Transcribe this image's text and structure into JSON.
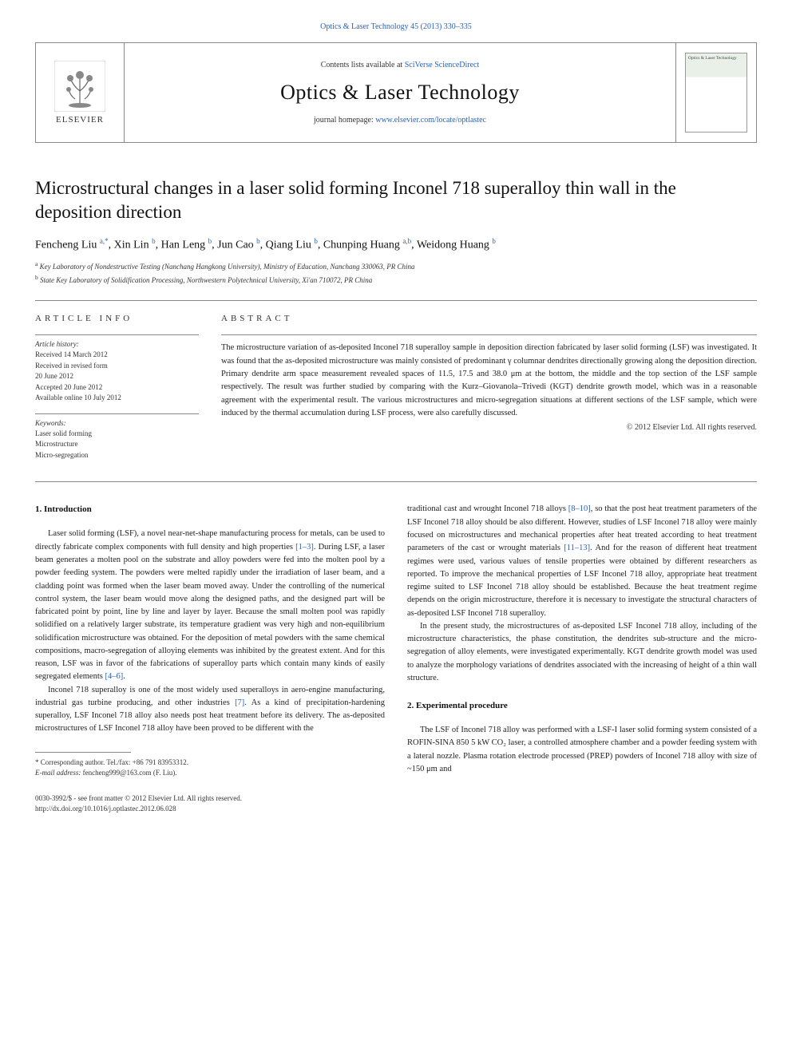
{
  "header": {
    "top_link_text": "Optics & Laser Technology 45 (2013) 330–335",
    "top_link_color": "#2962b8",
    "contents_prefix": "Contents lists available at ",
    "contents_linktext": "SciVerse ScienceDirect",
    "journal_name": "Optics & Laser Technology",
    "homepage_prefix": "journal homepage: ",
    "homepage_link": "www.elsevier.com/locate/optlastec",
    "publisher_name": "ELSEVIER",
    "cover_label": "Optics & Laser Technology"
  },
  "article": {
    "title": "Microstructural changes in a laser solid forming Inconel 718 superalloy thin wall in the deposition direction",
    "authors_html": "Fencheng Liu <sup>a,*</sup>, Xin Lin <sup>b</sup>, Han Leng <sup>b</sup>, Jun Cao <sup>b</sup>, Qiang Liu <sup>b</sup>, Chunping Huang <sup>a,b</sup>, Weidong Huang <sup>b</sup>",
    "affiliations": [
      {
        "sup": "a",
        "text": "Key Laboratory of Nondestructive Testing (Nanchang Hangkong University), Ministry of Education, Nanchang 330063, PR China"
      },
      {
        "sup": "b",
        "text": "State Key Laboratory of Solidification Processing, Northwestern Polytechnical University, Xi'an 710072, PR China"
      }
    ]
  },
  "info": {
    "heading": "ARTICLE INFO",
    "history_label": "Article history:",
    "history_lines": [
      "Received 14 March 2012",
      "Received in revised form",
      "20 June 2012",
      "Accepted 20 June 2012",
      "Available online 10 July 2012"
    ],
    "keywords_label": "Keywords:",
    "keywords": [
      "Laser solid forming",
      "Microstructure",
      "Micro-segregation"
    ]
  },
  "abstract": {
    "heading": "ABSTRACT",
    "text": "The microstructure variation of as-deposited Inconel 718 superalloy sample in deposition direction fabricated by laser solid forming (LSF) was investigated. It was found that the as-deposited microstructure was mainly consisted of predominant γ columnar dendrites directionally growing along the deposition direction. Primary dendrite arm space measurement revealed spaces of 11.5, 17.5 and 38.0 μm at the bottom, the middle and the top section of the LSF sample respectively. The result was further studied by comparing with the Kurz–Giovanola–Trivedi (KGT) dendrite growth model, which was in a reasonable agreement with the experimental result. The various microstructures and micro-segregation situations at different sections of the LSF sample, which were induced by the thermal accumulation during LSF process, were also carefully discussed.",
    "copyright": "© 2012 Elsevier Ltd. All rights reserved."
  },
  "body": {
    "section1_heading": "1. Introduction",
    "section1_p1": "Laser solid forming (LSF), a novel near-net-shape manufacturing process for metals, can be used to directly fabricate complex components with full density and high properties [1–3]. During LSF, a laser beam generates a molten pool on the substrate and alloy powders were fed into the molten pool by a powder feeding system. The powders were melted rapidly under the irradiation of laser beam, and a cladding point was formed when the laser beam moved away. Under the controlling of the numerical control system, the laser beam would move along the designed paths, and the designed part will be fabricated point by point, line by line and layer by layer. Because the small molten pool was rapidly solidified on a relatively larger substrate, its temperature gradient was very high and non-equilibrium solidification microstructure was obtained. For the deposition of metal powders with the same chemical compositions, macro-segregation of alloying elements was inhibited by the greatest extent. And for this reason, LSF was in favor of the fabrications of superalloy parts which contain many kinds of easily segregated elements [4–6].",
    "section1_p2": "Inconel 718 superalloy is one of the most widely used superalloys in aero-engine manufacturing, industrial gas turbine producing, and other industries [7]. As a kind of precipitation-hardening superalloy, LSF Inconel 718 alloy also needs post heat treatment before its delivery. The as-deposited microstructures of LSF Inconel 718 alloy have been proved to be different with the",
    "col2_p1": "traditional cast and wrought Inconel 718 alloys [8–10], so that the post heat treatment parameters of the LSF Inconel 718 alloy should be also different. However, studies of LSF Inconel 718 alloy were mainly focused on microstructures and mechanical properties after heat treated according to heat treatment parameters of the cast or wrought materials [11–13]. And for the reason of different heat treatment regimes were used, various values of tensile properties were obtained by different researchers as reported. To improve the mechanical properties of LSF Inconel 718 alloy, appropriate heat treatment regime suited to LSF Inconel 718 alloy should be established. Because the heat treatment regime depends on the origin microstructure, therefore it is necessary to investigate the structural characters of as-deposited LSF Inconel 718 superalloy.",
    "col2_p2": "In the present study, the microstructures of as-deposited LSF Inconel 718 alloy, including of the microstructure characteristics, the phase constitution, the dendrites sub-structure and the micro-segregation of alloy elements, were investigated experimentally. KGT dendrite growth model was used to analyze the morphology variations of dendrites associated with the increasing of height of a thin wall structure.",
    "section2_heading": "2. Experimental procedure",
    "section2_p1": "The LSF of Inconel 718 alloy was performed with a LSF-I laser solid forming system consisted of a ROFIN-SINA 850 5 kW CO₂ laser, a controlled atmosphere chamber and a powder feeding system with a lateral nozzle. Plasma rotation electrode processed (PREP) powders of Inconel 718 alloy with size of ~150 μm and"
  },
  "footnote": {
    "corr": "* Corresponding author. Tel./fax: +86 791 83953312.",
    "email_label": "E-mail address:",
    "email": "fencheng999@163.com (F. Liu)."
  },
  "footer": {
    "issn_line": "0030-3992/$ - see front matter © 2012 Elsevier Ltd. All rights reserved.",
    "doi_line": "http://dx.doi.org/10.1016/j.optlastec.2012.06.028"
  },
  "refs": {
    "r1_3": "[1–3]",
    "r4_6": "[4–6]",
    "r7": "[7]",
    "r8_10": "[8–10]",
    "r11_13": "[11–13]"
  },
  "colors": {
    "link": "#2962b8",
    "text": "#222222",
    "border": "#888888"
  }
}
